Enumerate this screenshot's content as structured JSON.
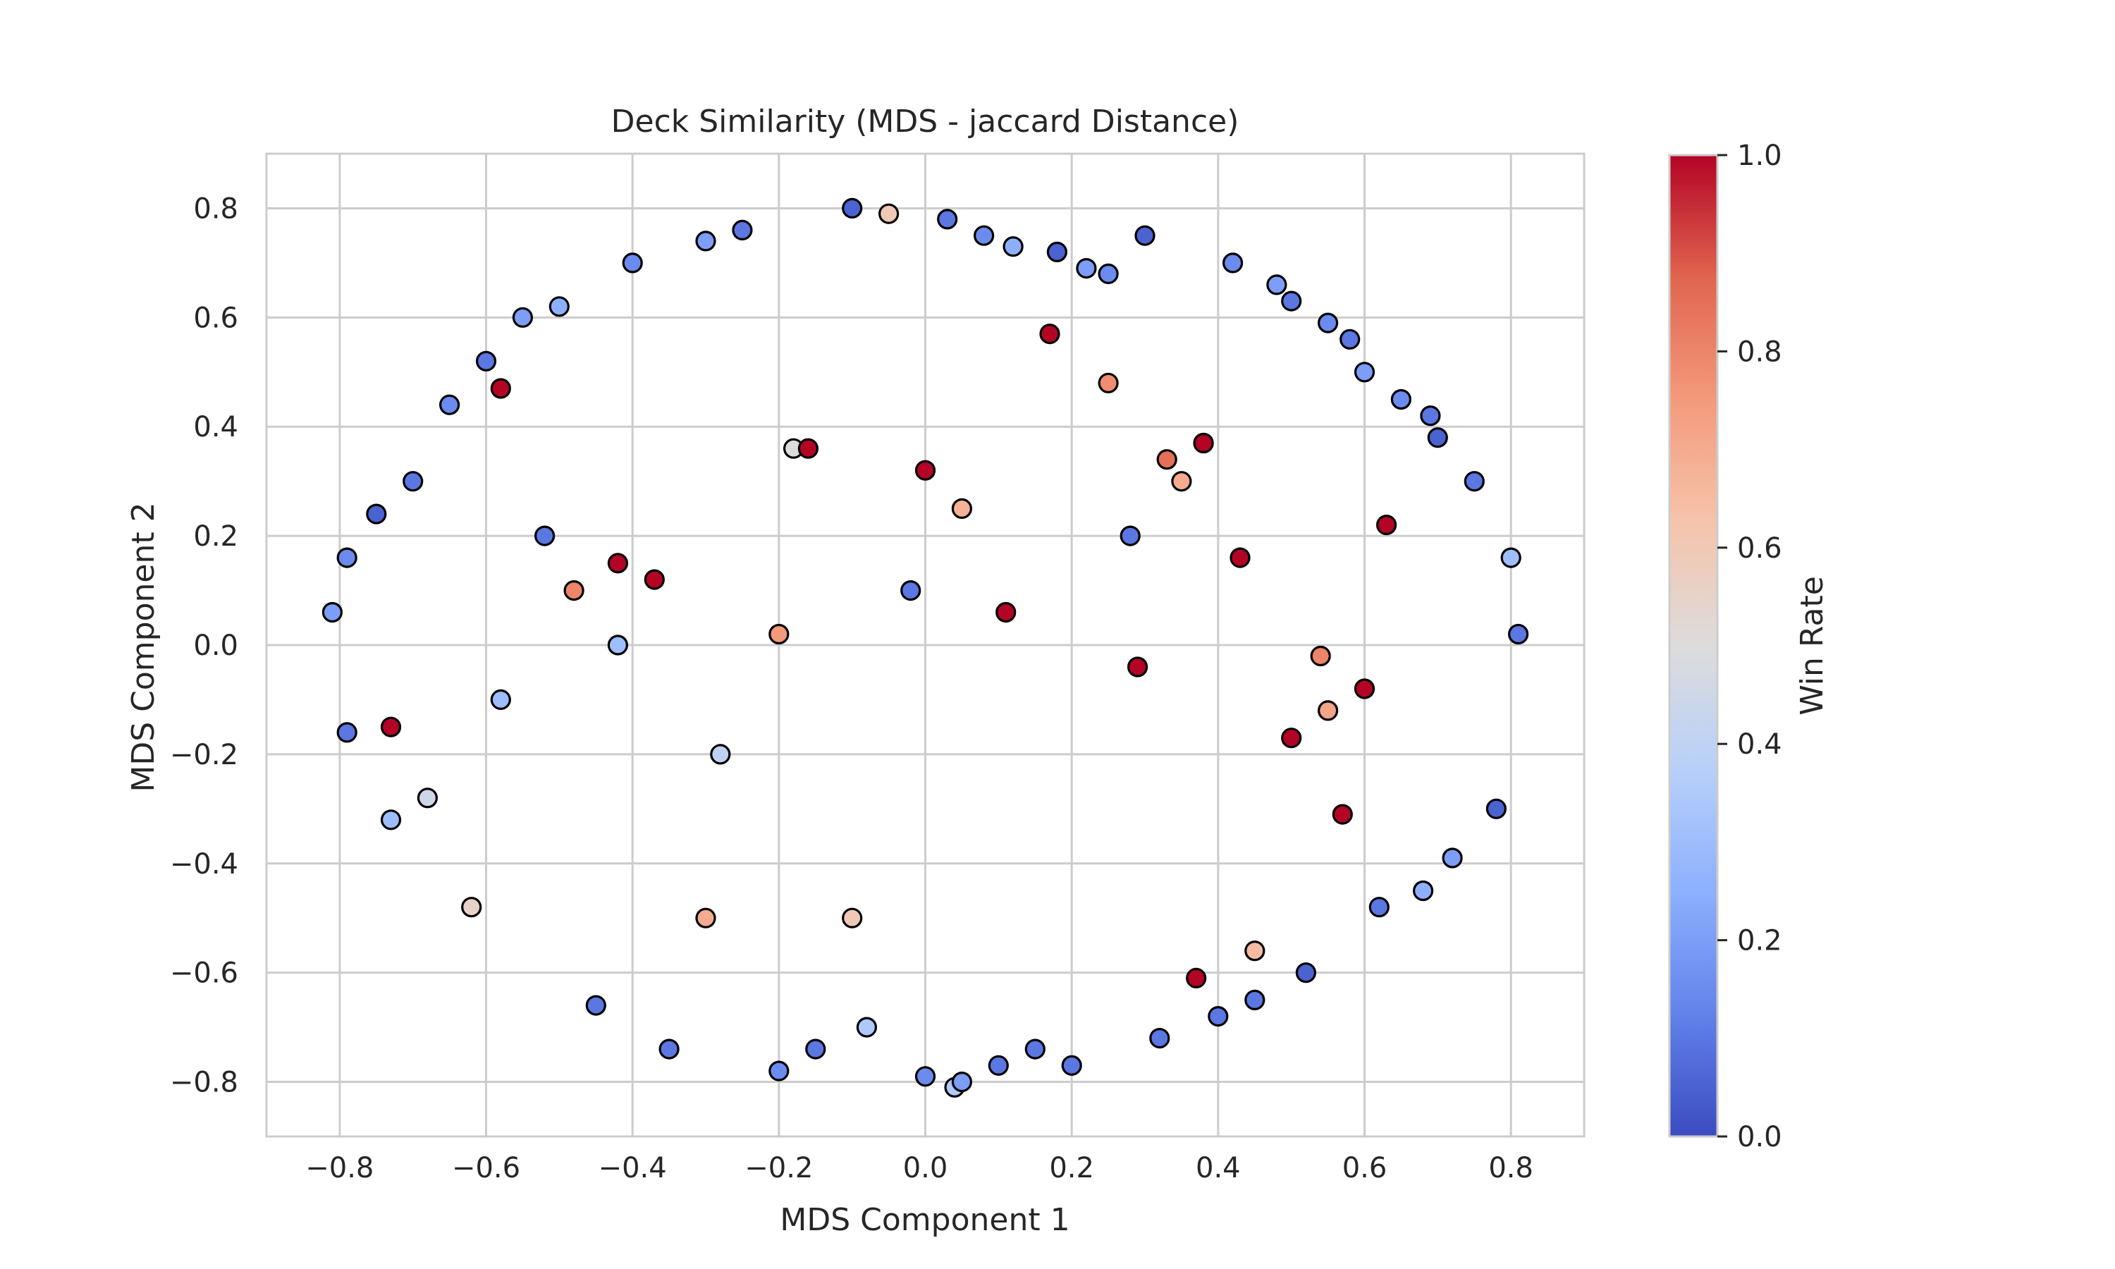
{
  "chart_data": {
    "type": "scatter",
    "title": "Deck Similarity (MDS - jaccard Distance)",
    "xlabel": "MDS Component 1",
    "ylabel": "MDS Component 2",
    "xlim": [
      -0.9,
      0.9
    ],
    "ylim": [
      -0.9,
      0.9
    ],
    "x_ticks": [
      -0.8,
      -0.6,
      -0.4,
      -0.2,
      0.0,
      0.2,
      0.4,
      0.6,
      0.8
    ],
    "x_tick_labels": [
      "−0.8",
      "−0.6",
      "−0.4",
      "−0.2",
      "0.0",
      "0.2",
      "0.4",
      "0.6",
      "0.8"
    ],
    "y_ticks": [
      -0.8,
      -0.6,
      -0.4,
      -0.2,
      0.0,
      0.2,
      0.4,
      0.6,
      0.8
    ],
    "y_tick_labels": [
      "−0.8",
      "−0.6",
      "−0.4",
      "−0.2",
      "0.0",
      "0.2",
      "0.4",
      "0.6",
      "0.8"
    ],
    "grid": true,
    "marker": {
      "edgecolor": "#000000",
      "shape": "circle"
    },
    "colorbar": {
      "label": "Win Rate",
      "colormap": "coolwarm",
      "range": [
        0.0,
        1.0
      ],
      "ticks": [
        0.0,
        0.2,
        0.4,
        0.6,
        0.8,
        1.0
      ],
      "tick_labels": [
        "0.0",
        "0.2",
        "0.4",
        "0.6",
        "0.8",
        "1.0"
      ],
      "stops": [
        "#3b4cc0",
        "#6282ea",
        "#8db0fe",
        "#b8d0f9",
        "#dddcdc",
        "#f5c4ac",
        "#f49a7b",
        "#e0654f",
        "#b40426"
      ]
    },
    "points": {
      "x": [
        -0.81,
        -0.79,
        -0.79,
        -0.75,
        -0.73,
        -0.7,
        -0.68,
        -0.65,
        -0.62,
        -0.6,
        -0.58,
        -0.55,
        -0.52,
        -0.5,
        -0.45,
        -0.42,
        -0.4,
        -0.35,
        -0.3,
        -0.28,
        -0.25,
        -0.2,
        -0.18,
        -0.15,
        -0.1,
        -0.08,
        -0.05,
        -0.02,
        0.0,
        0.03,
        0.04,
        0.05,
        0.08,
        0.1,
        0.12,
        0.15,
        0.18,
        0.2,
        0.22,
        0.25,
        0.28,
        0.3,
        0.32,
        0.35,
        0.37,
        0.38,
        0.4,
        0.42,
        0.45,
        0.48,
        0.5,
        0.52,
        0.55,
        0.57,
        0.58,
        0.6,
        0.62,
        0.65,
        0.68,
        0.69,
        0.7,
        0.72,
        0.75,
        0.78,
        0.8,
        0.81,
        -0.73,
        -0.58,
        -0.42,
        -0.37,
        -0.16,
        0.0,
        0.11,
        0.17,
        0.29,
        0.33,
        0.38,
        0.43,
        0.5,
        0.54,
        0.6,
        0.63,
        -0.2,
        -0.48,
        -0.3,
        0.25,
        0.45,
        0.55,
        -0.1,
        0.05
      ],
      "y": [
        0.06,
        -0.16,
        0.16,
        0.24,
        -0.32,
        0.3,
        -0.28,
        0.44,
        -0.48,
        0.52,
        -0.1,
        0.6,
        0.2,
        0.62,
        -0.66,
        0.0,
        0.7,
        -0.74,
        0.74,
        -0.2,
        0.76,
        -0.78,
        0.36,
        -0.74,
        0.8,
        -0.7,
        0.79,
        0.1,
        -0.79,
        0.78,
        -0.81,
        -0.8,
        0.75,
        -0.77,
        0.73,
        -0.74,
        0.72,
        -0.77,
        0.69,
        0.68,
        0.2,
        0.75,
        -0.72,
        0.3,
        -0.61,
        0.37,
        -0.68,
        0.7,
        -0.65,
        0.66,
        0.63,
        -0.6,
        0.59,
        -0.31,
        0.56,
        0.5,
        -0.48,
        0.45,
        -0.45,
        0.42,
        0.38,
        -0.39,
        0.3,
        -0.3,
        0.16,
        0.02,
        -0.15,
        0.47,
        0.15,
        0.12,
        0.36,
        0.32,
        0.06,
        0.57,
        -0.04,
        0.34,
        0.37,
        0.16,
        -0.17,
        -0.02,
        -0.08,
        0.22,
        0.02,
        0.1,
        -0.5,
        0.48,
        -0.56,
        -0.12,
        -0.5,
        0.25
      ],
      "win_rate": [
        0.2,
        0.1,
        0.15,
        0.05,
        0.3,
        0.1,
        0.45,
        0.15,
        0.55,
        0.1,
        0.3,
        0.2,
        0.1,
        0.25,
        0.1,
        0.3,
        0.15,
        0.1,
        0.2,
        0.4,
        0.1,
        0.15,
        0.5,
        0.1,
        0.05,
        0.35,
        0.6,
        0.1,
        0.15,
        0.1,
        0.35,
        0.2,
        0.15,
        0.1,
        0.25,
        0.1,
        0.05,
        0.1,
        0.2,
        0.15,
        0.1,
        0.05,
        0.1,
        0.7,
        1.0,
        0.2,
        0.1,
        0.15,
        0.1,
        0.2,
        0.1,
        0.05,
        0.15,
        1.0,
        0.1,
        0.2,
        0.1,
        0.15,
        0.25,
        0.1,
        0.05,
        0.2,
        0.1,
        0.05,
        0.3,
        0.1,
        1.0,
        1.0,
        1.0,
        1.0,
        1.0,
        1.0,
        1.0,
        1.0,
        1.0,
        0.85,
        1.0,
        1.0,
        1.0,
        0.8,
        1.0,
        1.0,
        0.75,
        0.8,
        0.7,
        0.78,
        0.65,
        0.72,
        0.6,
        0.68
      ]
    }
  }
}
